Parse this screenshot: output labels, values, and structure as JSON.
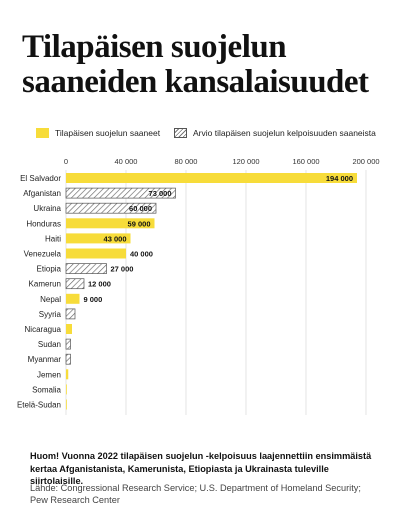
{
  "title_line1": "Tilapäisen suojelun",
  "title_line2": "saaneiden kansalaisuudet",
  "legend": {
    "granted": "Tilapäisen suojelun saaneet",
    "estimated": "Arvio tilapäisen suojelun kelpoisuuden saaneista"
  },
  "note": "Huom! Vuonna 2022 tilapäisen suojelun -kelpoisuus laajennettiin ensimmäistä kertaa Afganistanista, Kamerunista, Etiopiasta ja Ukrainasta tuleville siirtolaisille.",
  "source": "Lähde: Congressional Research Service; U.S. Department of Homeland Security; Pew Research Center",
  "colors": {
    "granted": "#f7dc3a",
    "hatch": "#666666",
    "grid": "#dddddd"
  },
  "chart_data": {
    "type": "bar",
    "orientation": "horizontal",
    "xlim": [
      0,
      200000
    ],
    "ticks": [
      {
        "value": 0,
        "label": "0"
      },
      {
        "value": 40000,
        "label": "40 000"
      },
      {
        "value": 80000,
        "label": "80 000"
      },
      {
        "value": 120000,
        "label": "120 000"
      },
      {
        "value": 160000,
        "label": "160 000"
      },
      {
        "value": 200000,
        "label": "200 000"
      }
    ],
    "grid": true,
    "legend_position": "top",
    "series": [
      {
        "name": "Tilapäisen suojelun saaneet",
        "style": "solid"
      },
      {
        "name": "Arvio tilapäisen suojelun kelpoisuuden saaneista",
        "style": "hatched"
      }
    ],
    "bars": [
      {
        "category": "El Salvador",
        "value": 194000,
        "label": "194 000",
        "series": "solid"
      },
      {
        "category": "Afganistan",
        "value": 73000,
        "label": "73 000",
        "series": "hatched"
      },
      {
        "category": "Ukraina",
        "value": 60000,
        "label": "60 000",
        "series": "hatched"
      },
      {
        "category": "Honduras",
        "value": 59000,
        "label": "59 000",
        "series": "solid"
      },
      {
        "category": "Haiti",
        "value": 43000,
        "label": "43 000",
        "series": "solid"
      },
      {
        "category": "Venezuela",
        "value": 40000,
        "label": "40 000",
        "series": "solid"
      },
      {
        "category": "Etiopia",
        "value": 27000,
        "label": "27 000",
        "series": "hatched"
      },
      {
        "category": "Kamerun",
        "value": 12000,
        "label": "12 000",
        "series": "hatched"
      },
      {
        "category": "Nepal",
        "value": 9000,
        "label": "9 000",
        "series": "solid"
      },
      {
        "category": "Syyria",
        "value": 6000,
        "label": "",
        "series": "hatched"
      },
      {
        "category": "Nicaragua",
        "value": 4000,
        "label": "",
        "series": "solid"
      },
      {
        "category": "Sudan",
        "value": 3000,
        "label": "",
        "series": "hatched"
      },
      {
        "category": "Myanmar",
        "value": 3000,
        "label": "",
        "series": "hatched"
      },
      {
        "category": "Jemen",
        "value": 1500,
        "label": "",
        "series": "solid"
      },
      {
        "category": "Somalia",
        "value": 500,
        "label": "",
        "series": "solid"
      },
      {
        "category": "Etelä-Sudan",
        "value": 200,
        "label": "",
        "series": "solid"
      }
    ]
  }
}
